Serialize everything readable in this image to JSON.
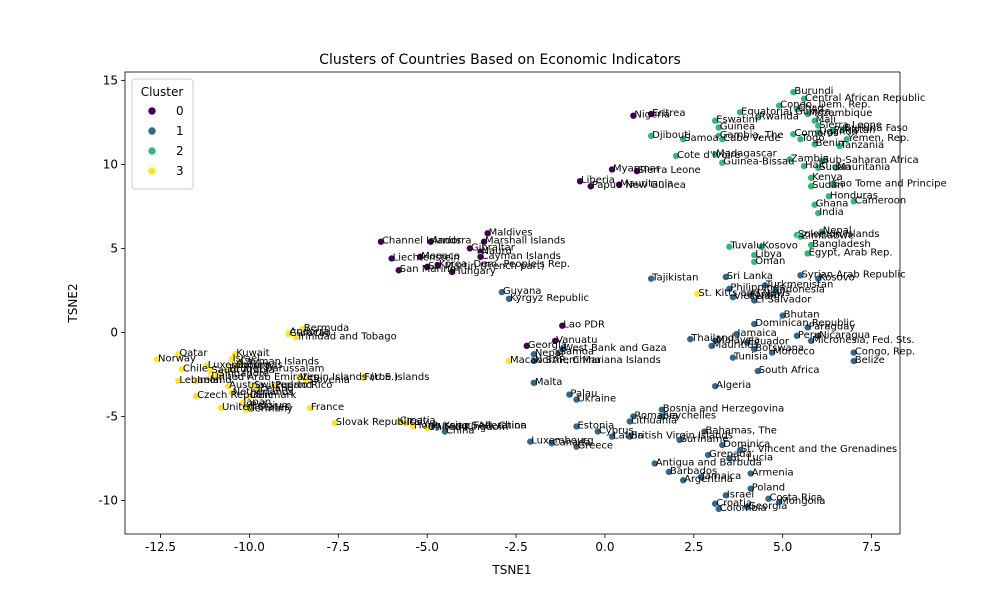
{
  "chart_data": {
    "type": "scatter",
    "title": "Clusters of Countries Based on Economic Indicators",
    "xlabel": "TSNE1",
    "ylabel": "TSNE2",
    "xlim": [
      -13.5,
      8.3
    ],
    "ylim": [
      -12,
      15.5
    ],
    "xticks": [
      -12.5,
      -10.0,
      -7.5,
      -5.0,
      -2.5,
      0.0,
      2.5,
      5.0,
      7.5
    ],
    "yticks": [
      -10,
      -5,
      0,
      5,
      10,
      15
    ],
    "grid": false,
    "legend": {
      "title": "Cluster",
      "position": "top-left",
      "entries": [
        {
          "label": "0",
          "color": "#440154"
        },
        {
          "label": "1",
          "color": "#31688e"
        },
        {
          "label": "2",
          "color": "#35b779"
        },
        {
          "label": "3",
          "color": "#fde725"
        }
      ]
    },
    "series": [
      {
        "name": "0",
        "color": "#440154",
        "points": [
          {
            "x": 1.3,
            "y": 13.0,
            "label": "Eritrea"
          },
          {
            "x": 0.8,
            "y": 12.9,
            "label": "Nigeria"
          },
          {
            "x": 0.2,
            "y": 9.7,
            "label": "Myanmar"
          },
          {
            "x": 0.9,
            "y": 9.6,
            "label": "Sierra Leone"
          },
          {
            "x": -0.7,
            "y": 9.0,
            "label": "Liberia"
          },
          {
            "x": -0.4,
            "y": 8.7,
            "label": "Papua New Guinea"
          },
          {
            "x": 0.4,
            "y": 8.8,
            "label": "Mauritania"
          },
          {
            "x": -3.3,
            "y": 5.9,
            "label": "Maldives"
          },
          {
            "x": -3.4,
            "y": 5.4,
            "label": "Marshall Islands"
          },
          {
            "x": -6.3,
            "y": 5.4,
            "label": "Channel Islands"
          },
          {
            "x": -4.9,
            "y": 5.4,
            "label": "Andorra"
          },
          {
            "x": -3.8,
            "y": 5.0,
            "label": "Gibraltar"
          },
          {
            "x": -3.5,
            "y": 4.8,
            "label": "Nauru"
          },
          {
            "x": -6.0,
            "y": 4.4,
            "label": "Liechtenstein"
          },
          {
            "x": -5.2,
            "y": 4.5,
            "label": "Monaco"
          },
          {
            "x": -3.5,
            "y": 4.5,
            "label": "Cayman Islands"
          },
          {
            "x": -5.8,
            "y": 3.7,
            "label": "San Marino"
          },
          {
            "x": -5.0,
            "y": 3.9,
            "label": "St. Martin (French part)"
          },
          {
            "x": -4.7,
            "y": 4.0,
            "label": "Korea, Dem. People's Rep."
          },
          {
            "x": -4.3,
            "y": 3.6,
            "label": "Hungary"
          },
          {
            "x": -1.2,
            "y": 0.4,
            "label": "Lao PDR"
          },
          {
            "x": -1.4,
            "y": -0.5,
            "label": "Vanuatu"
          },
          {
            "x": -2.2,
            "y": -0.8,
            "label": "Georgia"
          }
        ]
      },
      {
        "name": "1",
        "color": "#31688e",
        "points": [
          {
            "x": -2.9,
            "y": 2.4,
            "label": "Guyana"
          },
          {
            "x": -2.7,
            "y": 2.0,
            "label": "Kyrgyz Republic"
          },
          {
            "x": -2.0,
            "y": -1.3,
            "label": "Nepal"
          },
          {
            "x": -2.0,
            "y": -1.7,
            "label": "Northern Mariana Islands"
          },
          {
            "x": -1.3,
            "y": -1.2,
            "label": "Samoa"
          },
          {
            "x": -1.2,
            "y": -1.0,
            "label": "West Bank and Gaza"
          },
          {
            "x": -2.0,
            "y": -3.0,
            "label": "Malta"
          },
          {
            "x": -1.0,
            "y": -3.7,
            "label": "Palau"
          },
          {
            "x": -0.8,
            "y": -4.0,
            "label": "Ukraine"
          },
          {
            "x": 1.3,
            "y": 3.2,
            "label": "Tajikistan"
          },
          {
            "x": 3.4,
            "y": 3.3,
            "label": "Sri Lanka"
          },
          {
            "x": 3.5,
            "y": 2.6,
            "label": "Philippines"
          },
          {
            "x": 4.5,
            "y": 2.8,
            "label": "Turkmenistan"
          },
          {
            "x": 4.8,
            "y": 2.5,
            "label": "Indonesia"
          },
          {
            "x": 3.6,
            "y": 2.1,
            "label": "Viet Nam"
          },
          {
            "x": 4.1,
            "y": 2.2,
            "label": "Jordan"
          },
          {
            "x": 4.2,
            "y": 1.9,
            "label": "El Salvador"
          },
          {
            "x": 5.0,
            "y": 1.0,
            "label": "Bhutan"
          },
          {
            "x": 4.2,
            "y": 0.5,
            "label": "Dominican Republic"
          },
          {
            "x": 5.5,
            "y": 3.4,
            "label": "Syrian Arab Republic"
          },
          {
            "x": 6.0,
            "y": 3.2,
            "label": "Kosovo"
          },
          {
            "x": 5.7,
            "y": 0.3,
            "label": "Paraguay"
          },
          {
            "x": 2.4,
            "y": -0.4,
            "label": "Thailand"
          },
          {
            "x": 3.1,
            "y": -0.5,
            "label": "Malaysia"
          },
          {
            "x": 3.7,
            "y": -0.1,
            "label": "Jamaica"
          },
          {
            "x": 3.0,
            "y": -0.8,
            "label": "Mauritius"
          },
          {
            "x": 4.0,
            "y": -0.6,
            "label": "Ecuador"
          },
          {
            "x": 5.4,
            "y": -0.2,
            "label": "Peru"
          },
          {
            "x": 6.0,
            "y": -0.2,
            "label": "Nicaragua"
          },
          {
            "x": 5.8,
            "y": -0.5,
            "label": "Micronesia, Fed. Sts."
          },
          {
            "x": 4.2,
            "y": -1.0,
            "label": "Botswana"
          },
          {
            "x": 4.7,
            "y": -1.2,
            "label": "Morocco"
          },
          {
            "x": 3.6,
            "y": -1.5,
            "label": "Tunisia"
          },
          {
            "x": 4.3,
            "y": -2.3,
            "label": "South Africa"
          },
          {
            "x": 7.0,
            "y": -1.2,
            "label": "Congo, Rep."
          },
          {
            "x": 7.0,
            "y": -1.7,
            "label": "Belize"
          },
          {
            "x": 3.1,
            "y": -3.2,
            "label": "Algeria"
          },
          {
            "x": 1.6,
            "y": -4.6,
            "label": "Bosnia and Herzegovina"
          },
          {
            "x": 0.8,
            "y": -5.0,
            "label": "Romania"
          },
          {
            "x": 1.6,
            "y": -5.0,
            "label": "Seychelles"
          },
          {
            "x": 0.7,
            "y": -5.3,
            "label": "Lithuania"
          },
          {
            "x": -0.8,
            "y": -5.6,
            "label": "Estonia"
          },
          {
            "x": -0.2,
            "y": -5.9,
            "label": "Cyprus"
          },
          {
            "x": 2.8,
            "y": -5.9,
            "label": "Bahamas, The"
          },
          {
            "x": 0.2,
            "y": -6.2,
            "label": "Latvia"
          },
          {
            "x": 0.7,
            "y": -6.2,
            "label": "British Virgin Islands"
          },
          {
            "x": 2.1,
            "y": -6.4,
            "label": "Suriname"
          },
          {
            "x": 3.3,
            "y": -6.7,
            "label": "Dominica"
          },
          {
            "x": 3.8,
            "y": -7.0,
            "label": "St. Vincent and the Grenadines"
          },
          {
            "x": 2.9,
            "y": -7.3,
            "label": "Grenada"
          },
          {
            "x": 3.5,
            "y": -7.5,
            "label": "St. Lucia"
          },
          {
            "x": 1.4,
            "y": -7.8,
            "label": "Antigua and Barbuda"
          },
          {
            "x": -2.1,
            "y": -6.5,
            "label": "Luxembourg"
          },
          {
            "x": -1.5,
            "y": -6.6,
            "label": "Canada"
          },
          {
            "x": -0.8,
            "y": -6.8,
            "label": "Greece"
          },
          {
            "x": 1.8,
            "y": -8.3,
            "label": "Barbados"
          },
          {
            "x": 2.2,
            "y": -8.8,
            "label": "Argentina"
          },
          {
            "x": 2.7,
            "y": -8.6,
            "label": "Jamaica"
          },
          {
            "x": 4.1,
            "y": -8.4,
            "label": "Armenia"
          },
          {
            "x": 4.1,
            "y": -9.3,
            "label": "Poland"
          },
          {
            "x": 3.4,
            "y": -9.7,
            "label": "Israel"
          },
          {
            "x": 3.1,
            "y": -10.2,
            "label": "Croatia"
          },
          {
            "x": 4.6,
            "y": -9.9,
            "label": "Costa Rica"
          },
          {
            "x": 4.9,
            "y": -10.1,
            "label": "Mongolia"
          },
          {
            "x": 3.2,
            "y": -10.5,
            "label": "Colombia"
          },
          {
            "x": 4.0,
            "y": -10.4,
            "label": "Georgia"
          },
          {
            "x": -4.5,
            "y": -5.9,
            "label": "China"
          },
          {
            "x": -4.9,
            "y": -5.6,
            "label": "Russian Federation"
          }
        ]
      },
      {
        "name": "2",
        "color": "#35b779",
        "points": [
          {
            "x": 5.3,
            "y": 14.3,
            "label": "Burundi"
          },
          {
            "x": 5.6,
            "y": 13.9,
            "label": "Central African Republic"
          },
          {
            "x": 4.9,
            "y": 13.5,
            "label": "Congo, Dem. Rep."
          },
          {
            "x": 5.4,
            "y": 13.3,
            "label": "Chad"
          },
          {
            "x": 5.7,
            "y": 13.0,
            "label": "Mozambique"
          },
          {
            "x": 5.9,
            "y": 12.6,
            "label": "Mali"
          },
          {
            "x": 3.8,
            "y": 13.1,
            "label": "Equatorial Guinea"
          },
          {
            "x": 4.3,
            "y": 12.8,
            "label": "Rwanda"
          },
          {
            "x": 3.1,
            "y": 12.6,
            "label": "Eswatini"
          },
          {
            "x": 3.2,
            "y": 12.2,
            "label": "Guinea"
          },
          {
            "x": 6.0,
            "y": 12.3,
            "label": "Sierra Leone"
          },
          {
            "x": 6.4,
            "y": 12.0,
            "label": "Pakistan"
          },
          {
            "x": 6.7,
            "y": 12.1,
            "label": "Burkina Faso"
          },
          {
            "x": 1.3,
            "y": 11.7,
            "label": "Djibouti"
          },
          {
            "x": 3.2,
            "y": 11.7,
            "label": "Gambia, The"
          },
          {
            "x": 5.3,
            "y": 11.8,
            "label": "Comoros"
          },
          {
            "x": 6.0,
            "y": 11.9,
            "label": "Uganda"
          },
          {
            "x": 2.2,
            "y": 11.5,
            "label": "Samoa"
          },
          {
            "x": 3.3,
            "y": 11.5,
            "label": "Cabo Verde"
          },
          {
            "x": 5.5,
            "y": 11.5,
            "label": "Togo"
          },
          {
            "x": 6.8,
            "y": 11.5,
            "label": "Yemen, Rep."
          },
          {
            "x": 5.9,
            "y": 11.2,
            "label": "Benin"
          },
          {
            "x": 6.6,
            "y": 11.1,
            "label": "Tanzania"
          },
          {
            "x": 2.0,
            "y": 10.5,
            "label": "Cote d'Ivoire"
          },
          {
            "x": 3.1,
            "y": 10.6,
            "label": "Madagascar"
          },
          {
            "x": 3.3,
            "y": 10.1,
            "label": "Guinea-Bissau"
          },
          {
            "x": 5.2,
            "y": 10.3,
            "label": "Zambia"
          },
          {
            "x": 6.1,
            "y": 10.2,
            "label": "Sub-Saharan Africa"
          },
          {
            "x": 5.6,
            "y": 9.9,
            "label": "Haiti"
          },
          {
            "x": 6.0,
            "y": 9.8,
            "label": "Sudan"
          },
          {
            "x": 6.5,
            "y": 9.8,
            "label": "Mauritania"
          },
          {
            "x": 5.8,
            "y": 9.2,
            "label": "Kenya"
          },
          {
            "x": 5.8,
            "y": 8.7,
            "label": "Sudan"
          },
          {
            "x": 6.4,
            "y": 8.8,
            "label": "Sao Tome and Principe"
          },
          {
            "x": 6.3,
            "y": 8.1,
            "label": "Honduras"
          },
          {
            "x": 7.0,
            "y": 7.8,
            "label": "Cameroon"
          },
          {
            "x": 5.9,
            "y": 7.6,
            "label": "Ghana"
          },
          {
            "x": 6.0,
            "y": 7.1,
            "label": "India"
          },
          {
            "x": 5.4,
            "y": 5.8,
            "label": "Solomon Islands"
          },
          {
            "x": 5.5,
            "y": 5.7,
            "label": "Zimbabwe"
          },
          {
            "x": 6.1,
            "y": 6.0,
            "label": "Nepal"
          },
          {
            "x": 3.5,
            "y": 5.1,
            "label": "Tuvalu"
          },
          {
            "x": 4.4,
            "y": 5.1,
            "label": "Kosovo"
          },
          {
            "x": 4.2,
            "y": 4.6,
            "label": "Libya"
          },
          {
            "x": 4.2,
            "y": 4.2,
            "label": "Oman"
          },
          {
            "x": 5.8,
            "y": 5.2,
            "label": "Bangladesh"
          },
          {
            "x": 5.7,
            "y": 4.7,
            "label": "Egypt, Arab Rep."
          }
        ]
      },
      {
        "name": "3",
        "color": "#fde725",
        "points": [
          {
            "x": -8.5,
            "y": 0.2,
            "label": "Bermuda"
          },
          {
            "x": -8.9,
            "y": 0.0,
            "label": "Andorra"
          },
          {
            "x": -8.9,
            "y": -0.1,
            "label": "Curacao"
          },
          {
            "x": -8.7,
            "y": -0.3,
            "label": "Trinidad and Tobago"
          },
          {
            "x": -12.0,
            "y": -1.3,
            "label": "Qatar"
          },
          {
            "x": -12.6,
            "y": -1.6,
            "label": "Norway"
          },
          {
            "x": -10.4,
            "y": -1.3,
            "label": "Kuwait"
          },
          {
            "x": -10.5,
            "y": -1.6,
            "label": "Israel"
          },
          {
            "x": -10.3,
            "y": -1.8,
            "label": "Cayman Islands"
          },
          {
            "x": -10.4,
            "y": -2.0,
            "label": "Bahamas"
          },
          {
            "x": -11.2,
            "y": -2.0,
            "label": "Luxembourg"
          },
          {
            "x": -10.6,
            "y": -2.2,
            "label": "Brunei Darussalam"
          },
          {
            "x": -11.9,
            "y": -2.2,
            "label": "Chile"
          },
          {
            "x": -11.1,
            "y": -2.3,
            "label": "Saudi Arabia"
          },
          {
            "x": -10.9,
            "y": -2.5,
            "label": "Singapore"
          },
          {
            "x": -11.1,
            "y": -2.7,
            "label": "United Arab Emirates"
          },
          {
            "x": -6.8,
            "y": -2.7,
            "label": "Faroe Islands"
          },
          {
            "x": -8.6,
            "y": -2.7,
            "label": "Virgin Islands (U.S.)"
          },
          {
            "x": -8.4,
            "y": -2.9,
            "label": "Slovenia"
          },
          {
            "x": -12.0,
            "y": -2.9,
            "label": "Lebanon"
          },
          {
            "x": -11.5,
            "y": -2.9,
            "label": "Ireland"
          },
          {
            "x": -10.6,
            "y": -3.2,
            "label": "Austria"
          },
          {
            "x": -9.9,
            "y": -3.2,
            "label": "Switzerland"
          },
          {
            "x": -9.8,
            "y": -3.4,
            "label": "Iceland"
          },
          {
            "x": -9.3,
            "y": -3.2,
            "label": "Puerto Rico"
          },
          {
            "x": -10.5,
            "y": -3.6,
            "label": "Netherlands"
          },
          {
            "x": -10.0,
            "y": -3.8,
            "label": "Denmark"
          },
          {
            "x": -11.5,
            "y": -3.8,
            "label": "Czech Republic"
          },
          {
            "x": -10.2,
            "y": -4.2,
            "label": "Japan"
          },
          {
            "x": -10.0,
            "y": -4.4,
            "label": "Belgium"
          },
          {
            "x": -10.8,
            "y": -4.5,
            "label": "United States"
          },
          {
            "x": -10.1,
            "y": -4.6,
            "label": "Germany"
          },
          {
            "x": -8.3,
            "y": -4.5,
            "label": "France"
          },
          {
            "x": -7.6,
            "y": -5.4,
            "label": "Slovak Republic"
          },
          {
            "x": -5.8,
            "y": -5.3,
            "label": "Croatia"
          },
          {
            "x": -5.4,
            "y": -5.6,
            "label": "Hong Kong SAR, China"
          },
          {
            "x": -5.6,
            "y": -5.4,
            "label": "Italy"
          },
          {
            "x": -5.0,
            "y": -5.7,
            "label": "United Kingdom"
          },
          {
            "x": -2.7,
            "y": -1.7,
            "label": "Macao SAR, China"
          },
          {
            "x": 2.6,
            "y": 2.3,
            "label": "St. Kitts and Nevis"
          }
        ]
      }
    ]
  }
}
